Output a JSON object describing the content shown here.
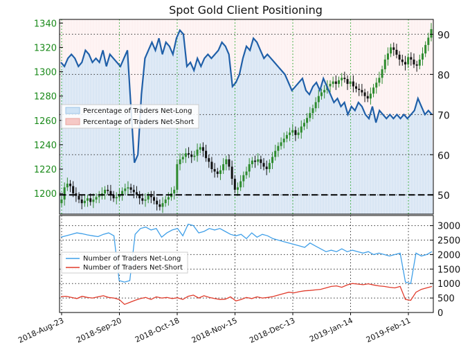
{
  "title": "Spot Gold Client Positioning",
  "colors": {
    "price_up": "#2e8b2e",
    "price_down": "#111111",
    "net_long_line": "#1f5fa8",
    "net_long_fill": "#cfe3f5",
    "net_short_fill": "#f6c9c6",
    "traders_long": "#3f9fe8",
    "traders_short": "#e03a2a",
    "grid_vertical": "#2eaa2e",
    "grid_horizontal": "#333333",
    "left_axis_text": "#1a8a1a"
  },
  "chart_data": [
    {
      "type": "candlestick+line",
      "name": "upper-panel",
      "left_axis": {
        "ticks": [
          1200,
          1220,
          1240,
          1260,
          1280,
          1300,
          1320,
          1340
        ],
        "range": [
          1183,
          1343
        ]
      },
      "right_axis": {
        "ticks": [
          50,
          60,
          70,
          80,
          90
        ],
        "range": [
          45.2,
          93.7
        ]
      },
      "x_ticks": [
        "2018-Aug-23",
        "2018-Sep-20",
        "2018-Oct-18",
        "2018-Nov-15",
        "2018-Dec-13",
        "2019-Jan-14",
        "2019-Feb-11"
      ],
      "reference_line_right_axis": 50,
      "legend": {
        "placement": "left",
        "items": [
          "Percentage of Traders Net-Long",
          "Percentage of Traders Net-Short"
        ]
      },
      "price_close": [
        1195,
        1205,
        1208,
        1206,
        1200,
        1198,
        1195,
        1192,
        1194,
        1196,
        1193,
        1195,
        1197,
        1198,
        1200,
        1203,
        1202,
        1199,
        1196,
        1197,
        1199,
        1202,
        1204,
        1205,
        1203,
        1201,
        1199,
        1196,
        1194,
        1195,
        1198,
        1197,
        1194,
        1191,
        1189,
        1192,
        1195,
        1197,
        1200,
        1203,
        1224,
        1228,
        1230,
        1233,
        1232,
        1230,
        1231,
        1236,
        1238,
        1235,
        1229,
        1226,
        1220,
        1218,
        1216,
        1219,
        1224,
        1228,
        1222,
        1212,
        1203,
        1205,
        1210,
        1215,
        1218,
        1224,
        1227,
        1226,
        1228,
        1225,
        1222,
        1220,
        1225,
        1230,
        1235,
        1239,
        1242,
        1245,
        1248,
        1250,
        1252,
        1248,
        1250,
        1255,
        1258,
        1262,
        1266,
        1270,
        1275,
        1280,
        1283,
        1285,
        1288,
        1290,
        1292,
        1290,
        1293,
        1295,
        1294,
        1290,
        1292,
        1288,
        1286,
        1285,
        1283,
        1280,
        1278,
        1282,
        1287,
        1291,
        1295,
        1302,
        1310,
        1315,
        1320,
        1318,
        1314,
        1310,
        1308,
        1306,
        1312,
        1310,
        1306,
        1305,
        1310,
        1315,
        1322,
        1328,
        1335
      ],
      "net_long_percent": [
        83,
        82,
        84,
        85,
        84,
        82,
        83,
        86,
        85,
        83,
        84,
        83,
        86,
        82,
        85,
        84,
        83,
        82,
        84,
        86,
        72,
        58,
        60,
        75,
        84,
        86,
        88,
        86,
        89,
        85,
        88,
        87,
        85,
        89,
        91,
        90,
        82,
        83,
        81,
        84,
        82,
        84,
        85,
        84,
        85,
        86,
        88,
        87,
        85,
        77,
        78,
        80,
        84,
        87,
        86,
        89,
        88,
        86,
        84,
        85,
        84,
        83,
        82,
        81,
        80,
        78,
        76,
        77,
        78,
        79,
        76,
        75,
        77,
        78,
        76,
        79,
        77,
        75,
        73,
        74,
        72,
        73,
        70,
        72,
        71,
        73,
        72,
        70,
        69,
        72,
        68,
        71,
        70,
        69,
        70,
        69,
        70,
        69,
        70,
        69,
        70,
        71,
        74,
        72,
        70,
        71,
        70
      ],
      "net_long_x_start_index": 0
    },
    {
      "type": "line",
      "name": "lower-panel",
      "right_axis": {
        "ticks": [
          0,
          500,
          1000,
          1500,
          2000,
          2500,
          3000
        ],
        "range": [
          0,
          3350
        ]
      },
      "legend": {
        "placement": "left",
        "items": [
          "Number of Traders Net-Long",
          "Number of Traders Net-Short"
        ]
      },
      "series": [
        {
          "name": "Number of Traders Net-Long",
          "values": [
            2600,
            2650,
            2700,
            2750,
            2720,
            2680,
            2650,
            2620,
            2700,
            2750,
            2650,
            1100,
            1050,
            1100,
            2700,
            2900,
            2950,
            2850,
            2900,
            2600,
            2750,
            2850,
            2900,
            2650,
            3050,
            3000,
            2750,
            2800,
            2900,
            2850,
            2900,
            2800,
            2700,
            2650,
            2700,
            2550,
            2750,
            2600,
            2700,
            2650,
            2550,
            2500,
            2450,
            2400,
            2350,
            2300,
            2250,
            2400,
            2300,
            2200,
            2100,
            2150,
            2100,
            2200,
            2100,
            2150,
            2100,
            2050,
            2100,
            2000,
            2050,
            2000,
            1950,
            2000,
            2050,
            1050,
            1000,
            2050,
            1950,
            2000,
            2100
          ]
        },
        {
          "name": "Number of Traders Net-Short",
          "values": [
            550,
            560,
            520,
            480,
            560,
            520,
            500,
            540,
            580,
            520,
            500,
            450,
            280,
            350,
            420,
            480,
            520,
            450,
            540,
            500,
            520,
            480,
            510,
            450,
            560,
            600,
            500,
            580,
            520,
            480,
            450,
            460,
            540,
            400,
            450,
            520,
            480,
            540,
            500,
            520,
            550,
            600,
            650,
            700,
            680,
            720,
            750,
            760,
            780,
            800,
            850,
            900,
            920,
            870,
            950,
            1000,
            980,
            960,
            990,
            950,
            920,
            900,
            870,
            850,
            900,
            450,
            420,
            700,
            800,
            850,
            900
          ]
        }
      ]
    }
  ]
}
